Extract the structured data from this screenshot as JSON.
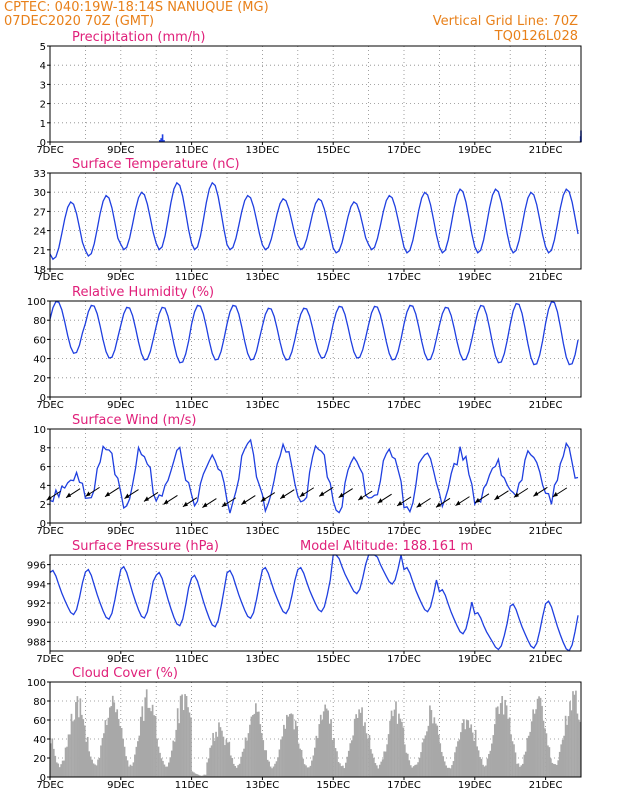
{
  "header": {
    "line1": "CPTEC:   040:19W-18:14S   NANUQUE (MG)",
    "line2": "07DEC2020 70Z (GMT)",
    "grid_note": "Vertical Grid Line: 70Z",
    "code": "TQ0126L028"
  },
  "colors": {
    "header": "#e8801a",
    "title": "#e0207a",
    "line": "#1f3fe0",
    "bars": "#a8a8a8"
  },
  "chart_data": [
    {
      "type": "bar",
      "title": "Precipitation (mm/h)",
      "x_labels": [
        "7DEC",
        "9DEC",
        "11DEC",
        "13DEC",
        "15DEC",
        "17DEC",
        "19DEC",
        "21DEC"
      ],
      "ylim": [
        0,
        5
      ],
      "yticks": [
        0,
        1,
        2,
        3,
        4,
        5
      ],
      "x": [
        3.1,
        3.14,
        3.18,
        3.22,
        14.99,
        15.0
      ],
      "values": [
        0.1,
        0.2,
        0.4,
        0.1,
        0.3,
        0.6
      ]
    },
    {
      "type": "line",
      "title": "Surface Temperature (nC)",
      "x_labels": [
        "7DEC",
        "9DEC",
        "11DEC",
        "13DEC",
        "15DEC",
        "17DEC",
        "19DEC",
        "21DEC"
      ],
      "ylim": [
        18,
        33
      ],
      "yticks": [
        18,
        21,
        24,
        27,
        30,
        33
      ],
      "daily_min": [
        19.5,
        20,
        21,
        21,
        21,
        21,
        21,
        21,
        20.5,
        21,
        20.5,
        20.5,
        20.5,
        20.5
      ],
      "daily_max": [
        28.5,
        29.5,
        30,
        31.5,
        31.5,
        29.5,
        29,
        29,
        28.5,
        29.5,
        30,
        30.5,
        30.5,
        30,
        30.5
      ]
    },
    {
      "type": "line",
      "title": "Relative Humidity (%)",
      "x_labels": [
        "7DEC",
        "9DEC",
        "11DEC",
        "13DEC",
        "15DEC",
        "17DEC",
        "19DEC",
        "21DEC"
      ],
      "ylim": [
        0,
        100
      ],
      "yticks": [
        0,
        20,
        40,
        60,
        80,
        100
      ],
      "daily_max": [
        100,
        96,
        94,
        94,
        96,
        96,
        93,
        93,
        95,
        95,
        96,
        94,
        96,
        98,
        100
      ],
      "daily_min": [
        45,
        40,
        38,
        35,
        38,
        38,
        38,
        40,
        40,
        38,
        38,
        38,
        35,
        33
      ]
    },
    {
      "type": "line",
      "title": "Surface Wind (m/s)",
      "x_labels": [
        "7DEC",
        "9DEC",
        "11DEC",
        "13DEC",
        "15DEC",
        "17DEC",
        "19DEC",
        "21DEC"
      ],
      "ylim": [
        0,
        10
      ],
      "yticks": [
        0,
        2,
        4,
        6,
        8,
        10
      ],
      "daily_max": [
        5,
        8.5,
        8,
        7.5,
        7,
        9,
        8.5,
        8.5,
        7.5,
        7.5,
        8,
        7.5,
        6.5,
        7.5,
        8
      ],
      "daily_min": [
        3,
        2.5,
        2,
        2.5,
        2.5,
        1.5,
        2,
        1.5,
        1,
        2,
        1.5,
        2,
        2,
        2.5
      ]
    },
    {
      "type": "line",
      "title": "Surface Pressure (hPa)",
      "annotation": "Model Altitude: 188.161 m",
      "x_labels": [
        "7DEC",
        "9DEC",
        "11DEC",
        "13DEC",
        "15DEC",
        "17DEC",
        "19DEC",
        "21DEC"
      ],
      "ylim": [
        987,
        997
      ],
      "yticks": [
        988,
        990,
        992,
        994,
        996
      ],
      "daily_mean": [
        993,
        992.8,
        993,
        992.3,
        992.1,
        992.8,
        993.2,
        993.3,
        995,
        996,
        993.3,
        991,
        989,
        989.5,
        989.5
      ],
      "daily_amplitude": [
        2.2,
        2.5,
        2.6,
        2.7,
        2.6,
        2.4,
        2.3,
        2.2,
        2,
        2,
        2.2,
        2.2,
        1.8,
        2.2,
        2.5
      ]
    },
    {
      "type": "bar",
      "title": "Cloud Cover (%)",
      "x_labels": [
        "7DEC",
        "9DEC",
        "11DEC",
        "13DEC",
        "15DEC",
        "17DEC",
        "19DEC",
        "21DEC"
      ],
      "ylim": [
        0,
        100
      ],
      "yticks": [
        0,
        20,
        40,
        60,
        80,
        100
      ],
      "daily_peak": [
        88,
        92,
        95,
        92,
        60,
        80,
        80,
        80,
        80,
        80,
        78,
        72,
        95,
        95,
        97
      ]
    }
  ]
}
